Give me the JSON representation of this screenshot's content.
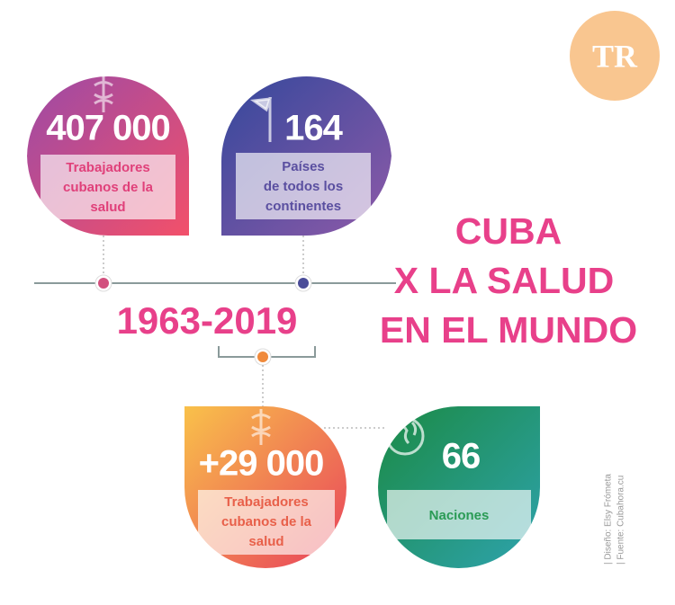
{
  "logo": "TR",
  "title": [
    "CUBA",
    "X LA SALUD",
    "EN EL MUNDO"
  ],
  "period": "1963-2019",
  "cards": [
    {
      "value": "407 000",
      "label": [
        "Trabajadores",
        "cubanos de la",
        "salud"
      ]
    },
    {
      "value": "164",
      "label": [
        "Países",
        "de todos los",
        "continentes"
      ]
    },
    {
      "value": "+29 000",
      "label": [
        "Trabajadores",
        "cubanos de la",
        "salud"
      ]
    },
    {
      "value": "66",
      "label": [
        "Naciones"
      ]
    }
  ],
  "credits": [
    "| Diseño: Elsy Frómeta",
    "| Fuente: Cubahora.cu"
  ]
}
